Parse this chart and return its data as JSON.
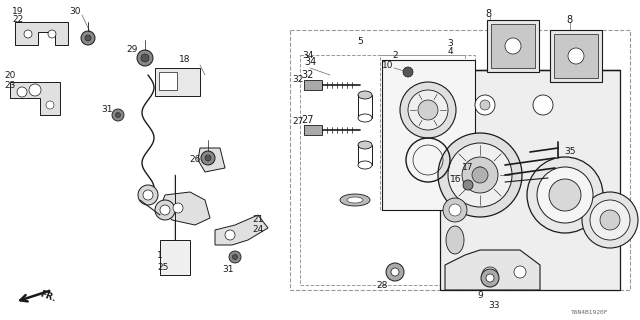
{
  "diagram_code": "T6N4B1920F",
  "bg_color": "#ffffff",
  "fig_width": 6.4,
  "fig_height": 3.2,
  "dpi": 100,
  "lc": "#1a1a1a",
  "gc": "#666666",
  "dash_color": "#999999"
}
